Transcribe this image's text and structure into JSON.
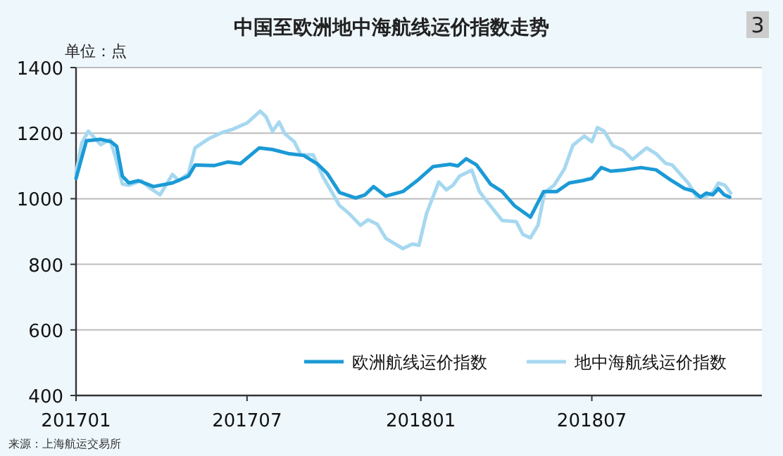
{
  "chart_data": {
    "type": "line",
    "title": "中国至欧洲地中海航线运价指数走势",
    "ylabel": "单位：点",
    "annotations": [
      "3",
      "来源：上海航运交易所"
    ],
    "xlim": [
      "2017-01-01",
      "2018-12-28"
    ],
    "xticks": [
      {
        "value": "2017-01-01",
        "label": "201701"
      },
      {
        "value": "2017-07-01",
        "label": "201707"
      },
      {
        "value": "2018-01-01",
        "label": "201801"
      },
      {
        "value": "2018-07-01",
        "label": "201807"
      }
    ],
    "ylim": [
      400,
      1400
    ],
    "yticks": [
      400,
      600,
      800,
      1000,
      1200,
      1400
    ],
    "grid": "y",
    "legend": "bottom right",
    "marker": "none",
    "line_style": "solid",
    "series": [
      {
        "name": "欧洲航线运价指数",
        "color": "#1b9ad6",
        "x": [
          "2017-01-01",
          "2017-01-12",
          "2017-01-27",
          "2017-02-07",
          "2017-02-13",
          "2017-02-19",
          "2017-02-26",
          "2017-03-08",
          "2017-03-24",
          "2017-04-13",
          "2017-04-30",
          "2017-05-07",
          "2017-05-27",
          "2017-06-11",
          "2017-06-24",
          "2017-07-14",
          "2017-07-28",
          "2017-08-15",
          "2017-08-30",
          "2017-09-14",
          "2017-09-24",
          "2017-10-07",
          "2017-10-24",
          "2017-11-03",
          "2017-11-12",
          "2017-11-25",
          "2017-12-13",
          "2017-12-28",
          "2018-01-14",
          "2018-02-01",
          "2018-02-09",
          "2018-02-18",
          "2018-03-01",
          "2018-03-16",
          "2018-03-28",
          "2018-04-10",
          "2018-04-27",
          "2018-05-11",
          "2018-05-25",
          "2018-06-07",
          "2018-06-21",
          "2018-07-01",
          "2018-07-11",
          "2018-07-21",
          "2018-08-05",
          "2018-08-22",
          "2018-09-07",
          "2018-09-22",
          "2018-10-07",
          "2018-10-16",
          "2018-10-24",
          "2018-10-30",
          "2018-11-06",
          "2018-11-12",
          "2018-11-18",
          "2018-11-24"
        ],
        "values": [
          1062,
          1177,
          1181,
          1174,
          1160,
          1069,
          1048,
          1055,
          1037,
          1048,
          1069,
          1103,
          1101,
          1112,
          1107,
          1155,
          1150,
          1137,
          1132,
          1105,
          1077,
          1019,
          1002,
          1012,
          1037,
          1008,
          1022,
          1055,
          1098,
          1105,
          1100,
          1122,
          1103,
          1044,
          1022,
          979,
          944,
          1022,
          1022,
          1048,
          1055,
          1062,
          1095,
          1084,
          1088,
          1095,
          1088,
          1058,
          1031,
          1024,
          1005,
          1017,
          1012,
          1031,
          1012,
          1005
        ]
      },
      {
        "name": "地中海航线运价指数",
        "color": "#a6d8f0",
        "x": [
          "2017-01-01",
          "2017-01-07",
          "2017-01-14",
          "2017-01-27",
          "2017-02-06",
          "2017-02-11",
          "2017-02-19",
          "2017-02-26",
          "2017-03-11",
          "2017-03-21",
          "2017-03-31",
          "2017-04-13",
          "2017-04-20",
          "2017-04-30",
          "2017-05-07",
          "2017-05-22",
          "2017-06-04",
          "2017-06-16",
          "2017-07-01",
          "2017-07-15",
          "2017-07-21",
          "2017-07-28",
          "2017-08-04",
          "2017-08-10",
          "2017-08-20",
          "2017-08-27",
          "2017-09-09",
          "2017-09-19",
          "2017-10-07",
          "2017-10-17",
          "2017-10-29",
          "2017-11-06",
          "2017-11-16",
          "2017-11-25",
          "2017-12-13",
          "2017-12-23",
          "2017-12-30",
          "2018-01-07",
          "2018-01-20",
          "2018-01-28",
          "2018-02-04",
          "2018-02-11",
          "2018-02-24",
          "2018-03-04",
          "2018-03-13",
          "2018-03-28",
          "2018-04-12",
          "2018-04-19",
          "2018-04-27",
          "2018-05-05",
          "2018-05-12",
          "2018-05-22",
          "2018-06-02",
          "2018-06-11",
          "2018-06-23",
          "2018-07-01",
          "2018-07-07",
          "2018-07-14",
          "2018-07-23",
          "2018-08-03",
          "2018-08-13",
          "2018-08-28",
          "2018-09-07",
          "2018-09-17",
          "2018-09-24",
          "2018-10-11",
          "2018-10-20",
          "2018-10-30",
          "2018-11-06",
          "2018-11-12",
          "2018-11-19",
          "2018-11-25"
        ],
        "values": [
          1077,
          1170,
          1206,
          1165,
          1180,
          1134,
          1045,
          1041,
          1055,
          1031,
          1012,
          1074,
          1055,
          1077,
          1155,
          1184,
          1201,
          1212,
          1231,
          1267,
          1250,
          1206,
          1234,
          1198,
          1174,
          1134,
          1134,
          1069,
          979,
          955,
          919,
          936,
          922,
          879,
          848,
          862,
          858,
          955,
          1051,
          1027,
          1041,
          1069,
          1087,
          1022,
          988,
          934,
          930,
          891,
          881,
          919,
          1019,
          1041,
          1091,
          1163,
          1191,
          1174,
          1217,
          1206,
          1163,
          1148,
          1120,
          1155,
          1137,
          1108,
          1103,
          1048,
          1005,
          1008,
          1019,
          1048,
          1041,
          1017
        ]
      }
    ]
  }
}
